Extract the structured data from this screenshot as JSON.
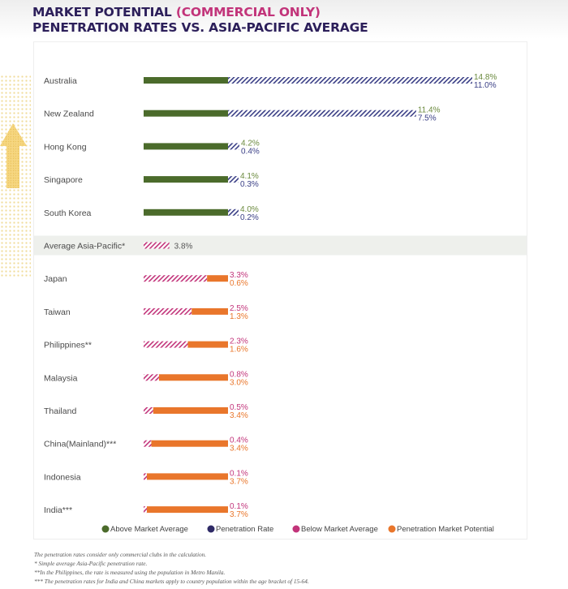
{
  "title": {
    "line1_prefix": "MARKET POTENTIAL",
    "line1_highlight": "(COMMERCIAL ONLY)",
    "line2": "PENETRATION RATES VS. ASIA-PACIFIC AVERAGE"
  },
  "colors": {
    "title": "#2c1f5a",
    "title_highlight": "#c2347a",
    "above_market": "#4b6b2b",
    "penetration_rate": "#2e2a66",
    "below_market": "#c2347a",
    "market_potential": "#e9762b",
    "average_band": "#eef0ec"
  },
  "chart_data": {
    "type": "bar",
    "categories": [
      "Australia",
      "New Zealand",
      "Hong Kong",
      "Singapore",
      "South Korea",
      "Average Asia-Pacific*",
      "Japan",
      "Taiwan",
      "Philippines**",
      "Malaysia",
      "Thailand",
      "China(Mainland)***",
      "Indonesia",
      "India***"
    ],
    "series": [
      {
        "name": "Penetration Rate",
        "values": [
          14.8,
          11.4,
          4.2,
          4.1,
          4.0,
          3.8,
          3.3,
          2.5,
          2.3,
          0.8,
          0.5,
          0.4,
          0.1,
          0.1
        ],
        "labels": [
          "14.8%",
          "11.4%",
          "4.2%",
          "4.1%",
          "4.0%",
          "3.8%",
          "3.3%",
          "2.5%",
          "2.3%",
          "0.8%",
          "0.5%",
          "0.4%",
          "0.1%",
          "0.1%"
        ]
      },
      {
        "name": "Above Market Average",
        "values": [
          11.0,
          7.5,
          0.4,
          0.3,
          0.2,
          null,
          null,
          null,
          null,
          null,
          null,
          null,
          null,
          null
        ],
        "labels": [
          "11.0%",
          "7.5%",
          "0.4%",
          "0.3%",
          "0.2%",
          "",
          "",
          "",
          "",
          "",
          "",
          "",
          "",
          ""
        ]
      },
      {
        "name": "Penetration Market Potential",
        "values": [
          null,
          null,
          null,
          null,
          null,
          null,
          0.6,
          1.3,
          1.6,
          3.0,
          3.4,
          3.4,
          3.7,
          3.7
        ],
        "labels": [
          "",
          "",
          "",
          "",
          "",
          "",
          "0.6%",
          "1.3%",
          "1.6%",
          "3.0%",
          "3.4%",
          "3.4%",
          "3.7%",
          "3.7%"
        ]
      }
    ],
    "legend": [
      {
        "label": "Above Market Average",
        "color": "#4b6b2b"
      },
      {
        "label": "Penetration Rate",
        "color": "#2e2a66"
      },
      {
        "label": "Below Market Average",
        "color": "#c2347a"
      },
      {
        "label": "Penetration Market Potential",
        "color": "#e9762b"
      }
    ],
    "legend_position": "bottom",
    "average_value": 3.8,
    "grid": false
  },
  "footnotes": [
    "The penetration rates consider only commercial clubs in the calculation.",
    "* Simple average Asia-Pacific penetration rate.",
    "**In the Philippines, the rate is measured using the population in Metro Manila.",
    "*** The penetration rates for India and China markets apply to country population within the age bracket of 15-64."
  ]
}
